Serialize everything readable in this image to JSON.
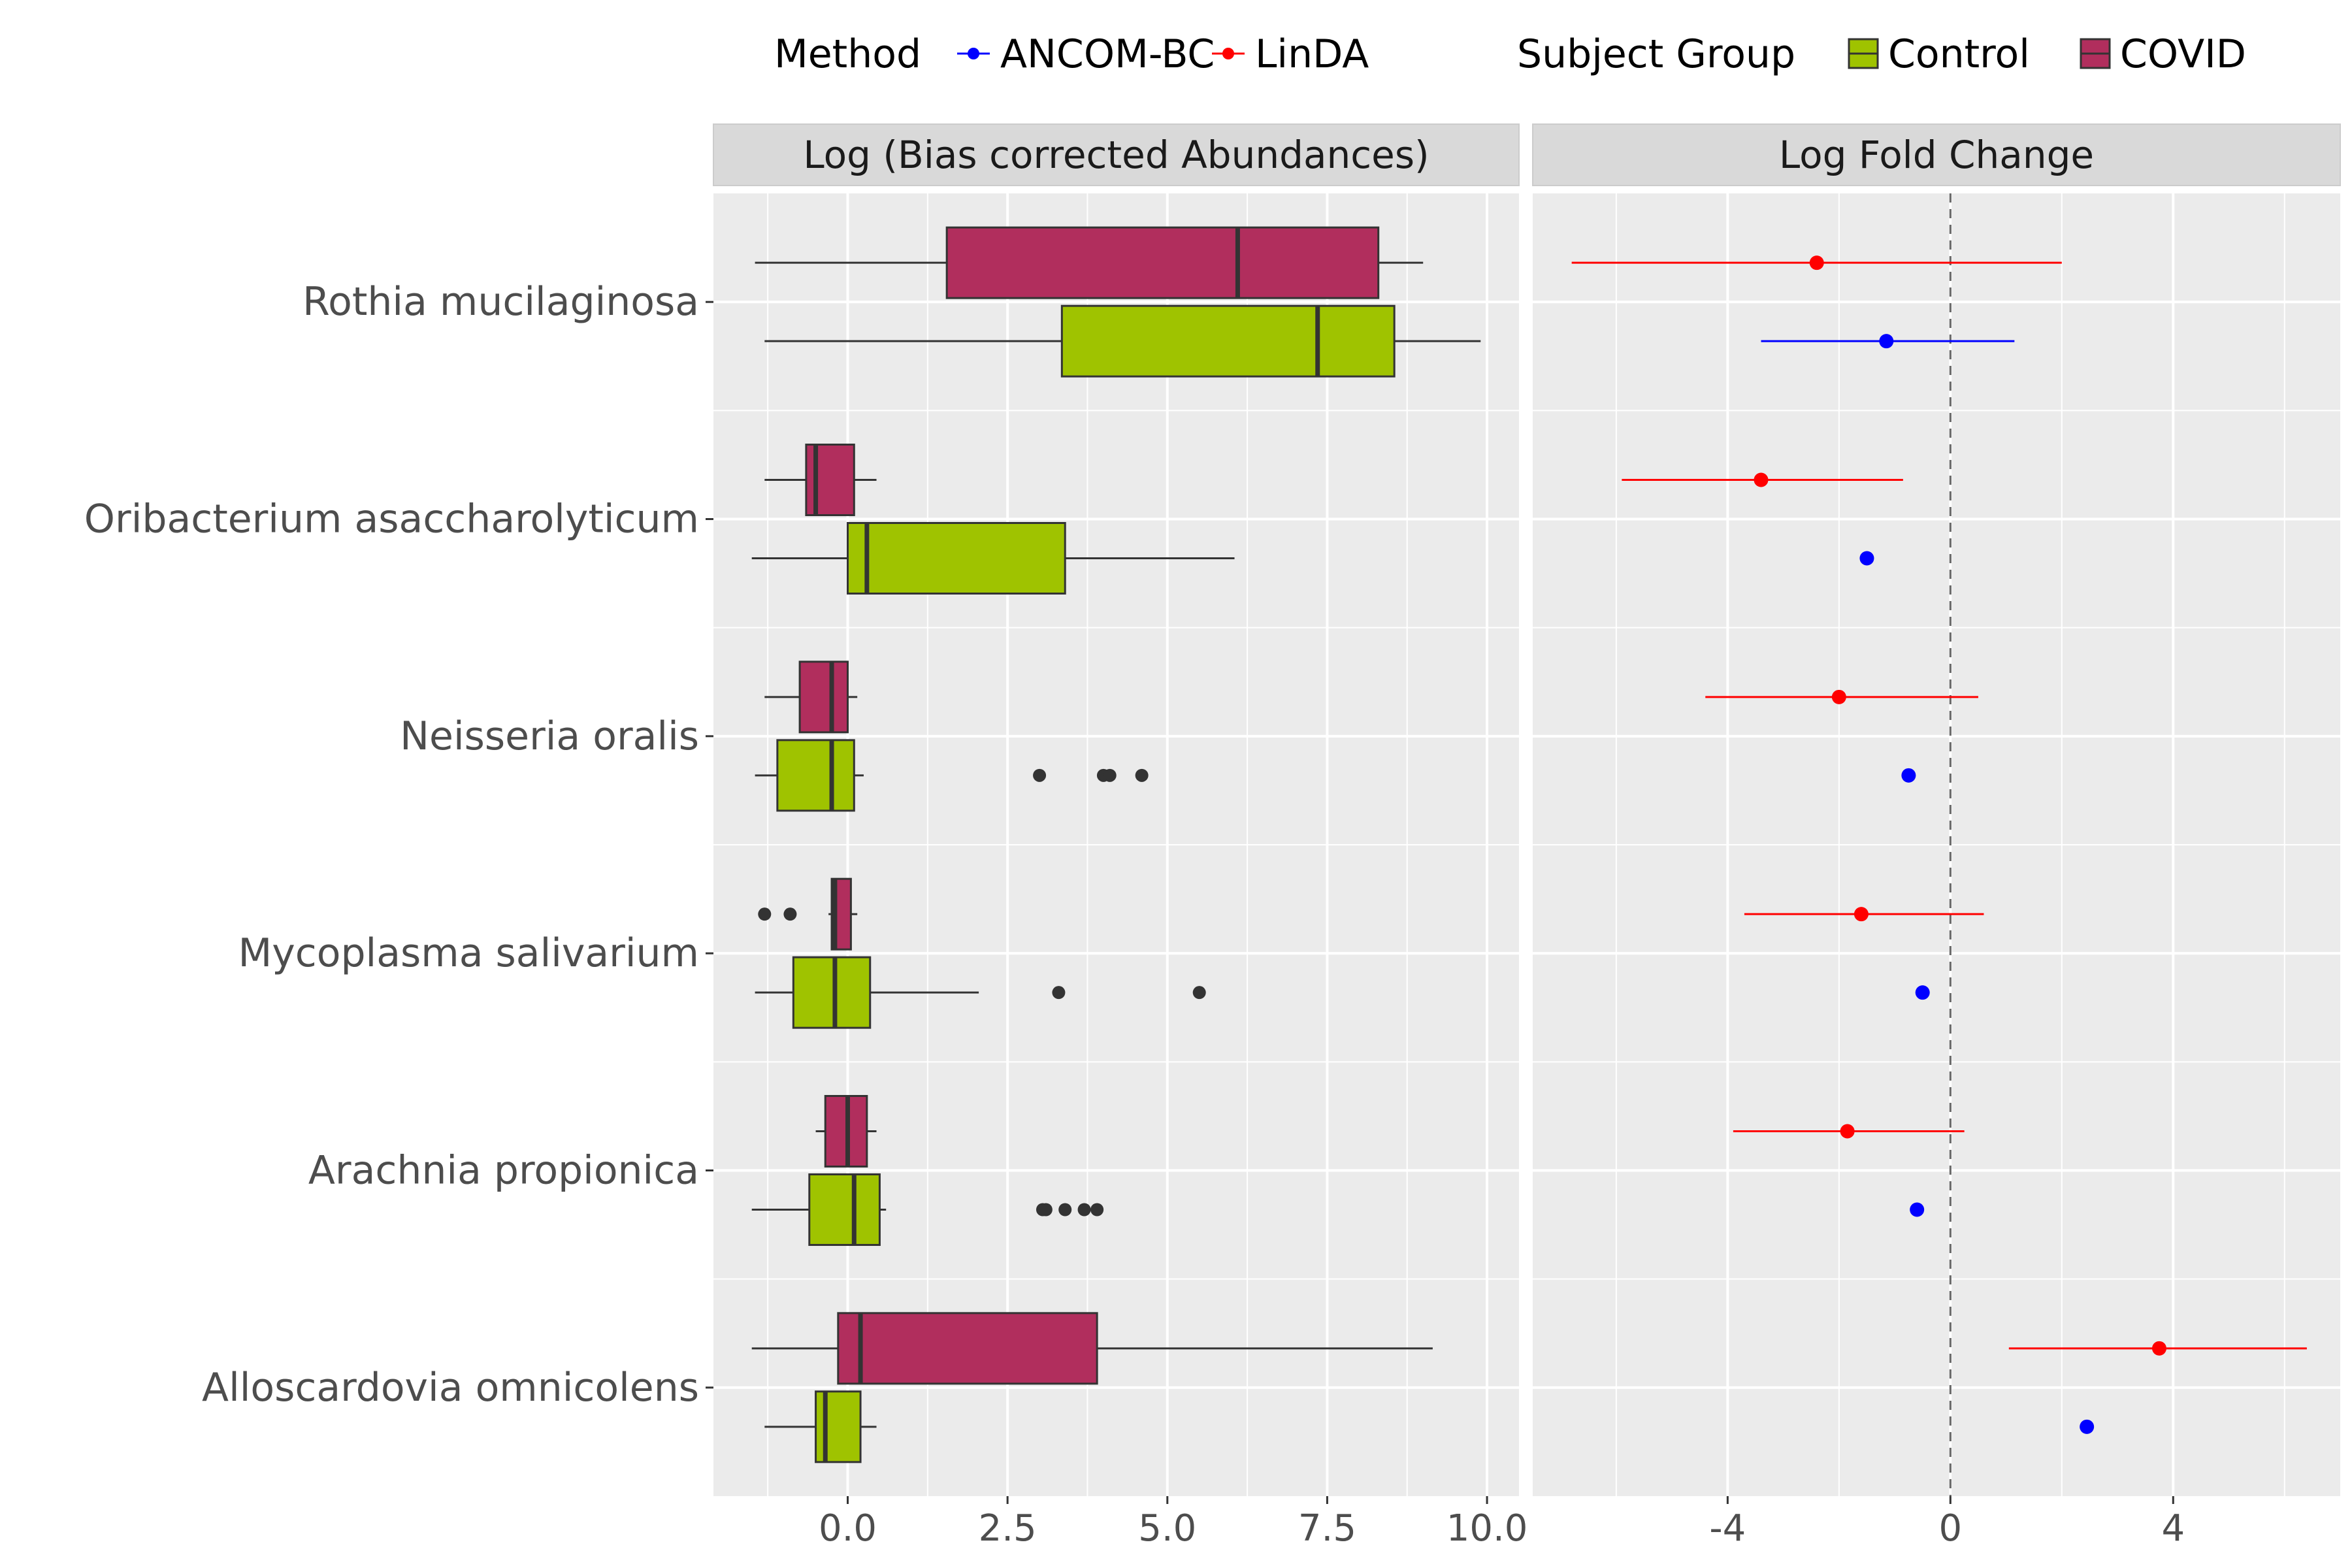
{
  "legend": {
    "method_title": "Method",
    "group_title": "Subject Group",
    "methods": [
      {
        "name": "ANCOM-BC",
        "color": "#0000ff"
      },
      {
        "name": "LinDA",
        "color": "#ff0000"
      }
    ],
    "groups": [
      {
        "name": "Control",
        "color": "#9fc300"
      },
      {
        "name": "COVID",
        "color": "#b12e5d"
      }
    ]
  },
  "chart_data": [
    {
      "type": "boxplot",
      "title": "Log (Bias corrected Abundances)",
      "xlim": [
        -2.1,
        10.5
      ],
      "xticks": [
        0.0,
        2.5,
        5.0,
        7.5,
        10.0
      ],
      "xtick_labels": [
        "0.0",
        "2.5",
        "5.0",
        "7.5",
        "10.0"
      ],
      "categories": [
        "Rothia mucilaginosa",
        "Oribacterium asaccharolyticum",
        "Neisseria oralis",
        "Mycoplasma salivarium",
        "Arachnia propionica",
        "Alloscardovia omnicolens"
      ],
      "series": [
        {
          "name": "COVID",
          "color": "#b12e5d",
          "boxes": [
            {
              "min": -1.45,
              "q1": 1.55,
              "median": 6.1,
              "q3": 8.3,
              "max": 9.0,
              "outliers": []
            },
            {
              "min": -1.3,
              "q1": -0.65,
              "median": -0.5,
              "q3": 0.1,
              "max": 0.45,
              "outliers": []
            },
            {
              "min": -1.3,
              "q1": -0.75,
              "median": -0.25,
              "q3": 0.0,
              "max": 0.15,
              "outliers": []
            },
            {
              "min": -0.3,
              "q1": -0.25,
              "median": -0.2,
              "q3": 0.05,
              "max": 0.15,
              "outliers": [
                -1.3,
                -0.9
              ]
            },
            {
              "min": -0.5,
              "q1": -0.35,
              "median": 0.0,
              "q3": 0.3,
              "max": 0.45,
              "outliers": []
            },
            {
              "min": -1.5,
              "q1": -0.15,
              "median": 0.2,
              "q3": 3.9,
              "max": 9.15,
              "outliers": []
            }
          ]
        },
        {
          "name": "Control",
          "color": "#9fc300",
          "boxes": [
            {
              "min": -1.3,
              "q1": 3.35,
              "median": 7.35,
              "q3": 8.55,
              "max": 9.9,
              "outliers": []
            },
            {
              "min": -1.5,
              "q1": 0.0,
              "median": 0.3,
              "q3": 3.4,
              "max": 6.05,
              "outliers": []
            },
            {
              "min": -1.45,
              "q1": -1.1,
              "median": -0.25,
              "q3": 0.1,
              "max": 0.25,
              "outliers": [
                3.0,
                4.0,
                4.1,
                4.6
              ]
            },
            {
              "min": -1.45,
              "q1": -0.85,
              "median": -0.2,
              "q3": 0.35,
              "max": 2.05,
              "outliers": [
                3.3,
                5.5
              ]
            },
            {
              "min": -1.5,
              "q1": -0.6,
              "median": 0.1,
              "q3": 0.5,
              "max": 0.6,
              "outliers": [
                3.05,
                3.1,
                3.4,
                3.7,
                3.9
              ]
            },
            {
              "min": -1.3,
              "q1": -0.5,
              "median": -0.35,
              "q3": 0.2,
              "max": 0.45,
              "outliers": []
            }
          ]
        }
      ]
    },
    {
      "type": "pointrange",
      "title": "Log Fold Change",
      "xlim": [
        -7.5,
        7.0
      ],
      "xticks": [
        -4,
        0,
        4
      ],
      "xtick_labels": [
        "-4",
        "0",
        "4"
      ],
      "reference_line": 0,
      "categories": [
        "Rothia mucilaginosa",
        "Oribacterium asaccharolyticum",
        "Neisseria oralis",
        "Mycoplasma salivarium",
        "Arachnia propionica",
        "Alloscardovia omnicolens"
      ],
      "series": [
        {
          "name": "LinDA",
          "color": "#ff0000",
          "points": [
            {
              "estimate": -2.4,
              "low": -6.8,
              "high": 2.0
            },
            {
              "estimate": -3.4,
              "low": -5.9,
              "high": -0.85
            },
            {
              "estimate": -2.0,
              "low": -4.4,
              "high": 0.5
            },
            {
              "estimate": -1.6,
              "low": -3.7,
              "high": 0.6
            },
            {
              "estimate": -1.85,
              "low": -3.9,
              "high": 0.25
            },
            {
              "estimate": 3.75,
              "low": 1.05,
              "high": 6.4
            }
          ]
        },
        {
          "name": "ANCOM-BC",
          "color": "#0000ff",
          "points": [
            {
              "estimate": -1.15,
              "low": -3.4,
              "high": 1.15
            },
            {
              "estimate": -1.5,
              "low": null,
              "high": null
            },
            {
              "estimate": -0.75,
              "low": null,
              "high": null
            },
            {
              "estimate": -0.5,
              "low": null,
              "high": null
            },
            {
              "estimate": -0.6,
              "low": null,
              "high": null
            },
            {
              "estimate": 2.45,
              "low": null,
              "high": null
            }
          ]
        }
      ]
    }
  ]
}
